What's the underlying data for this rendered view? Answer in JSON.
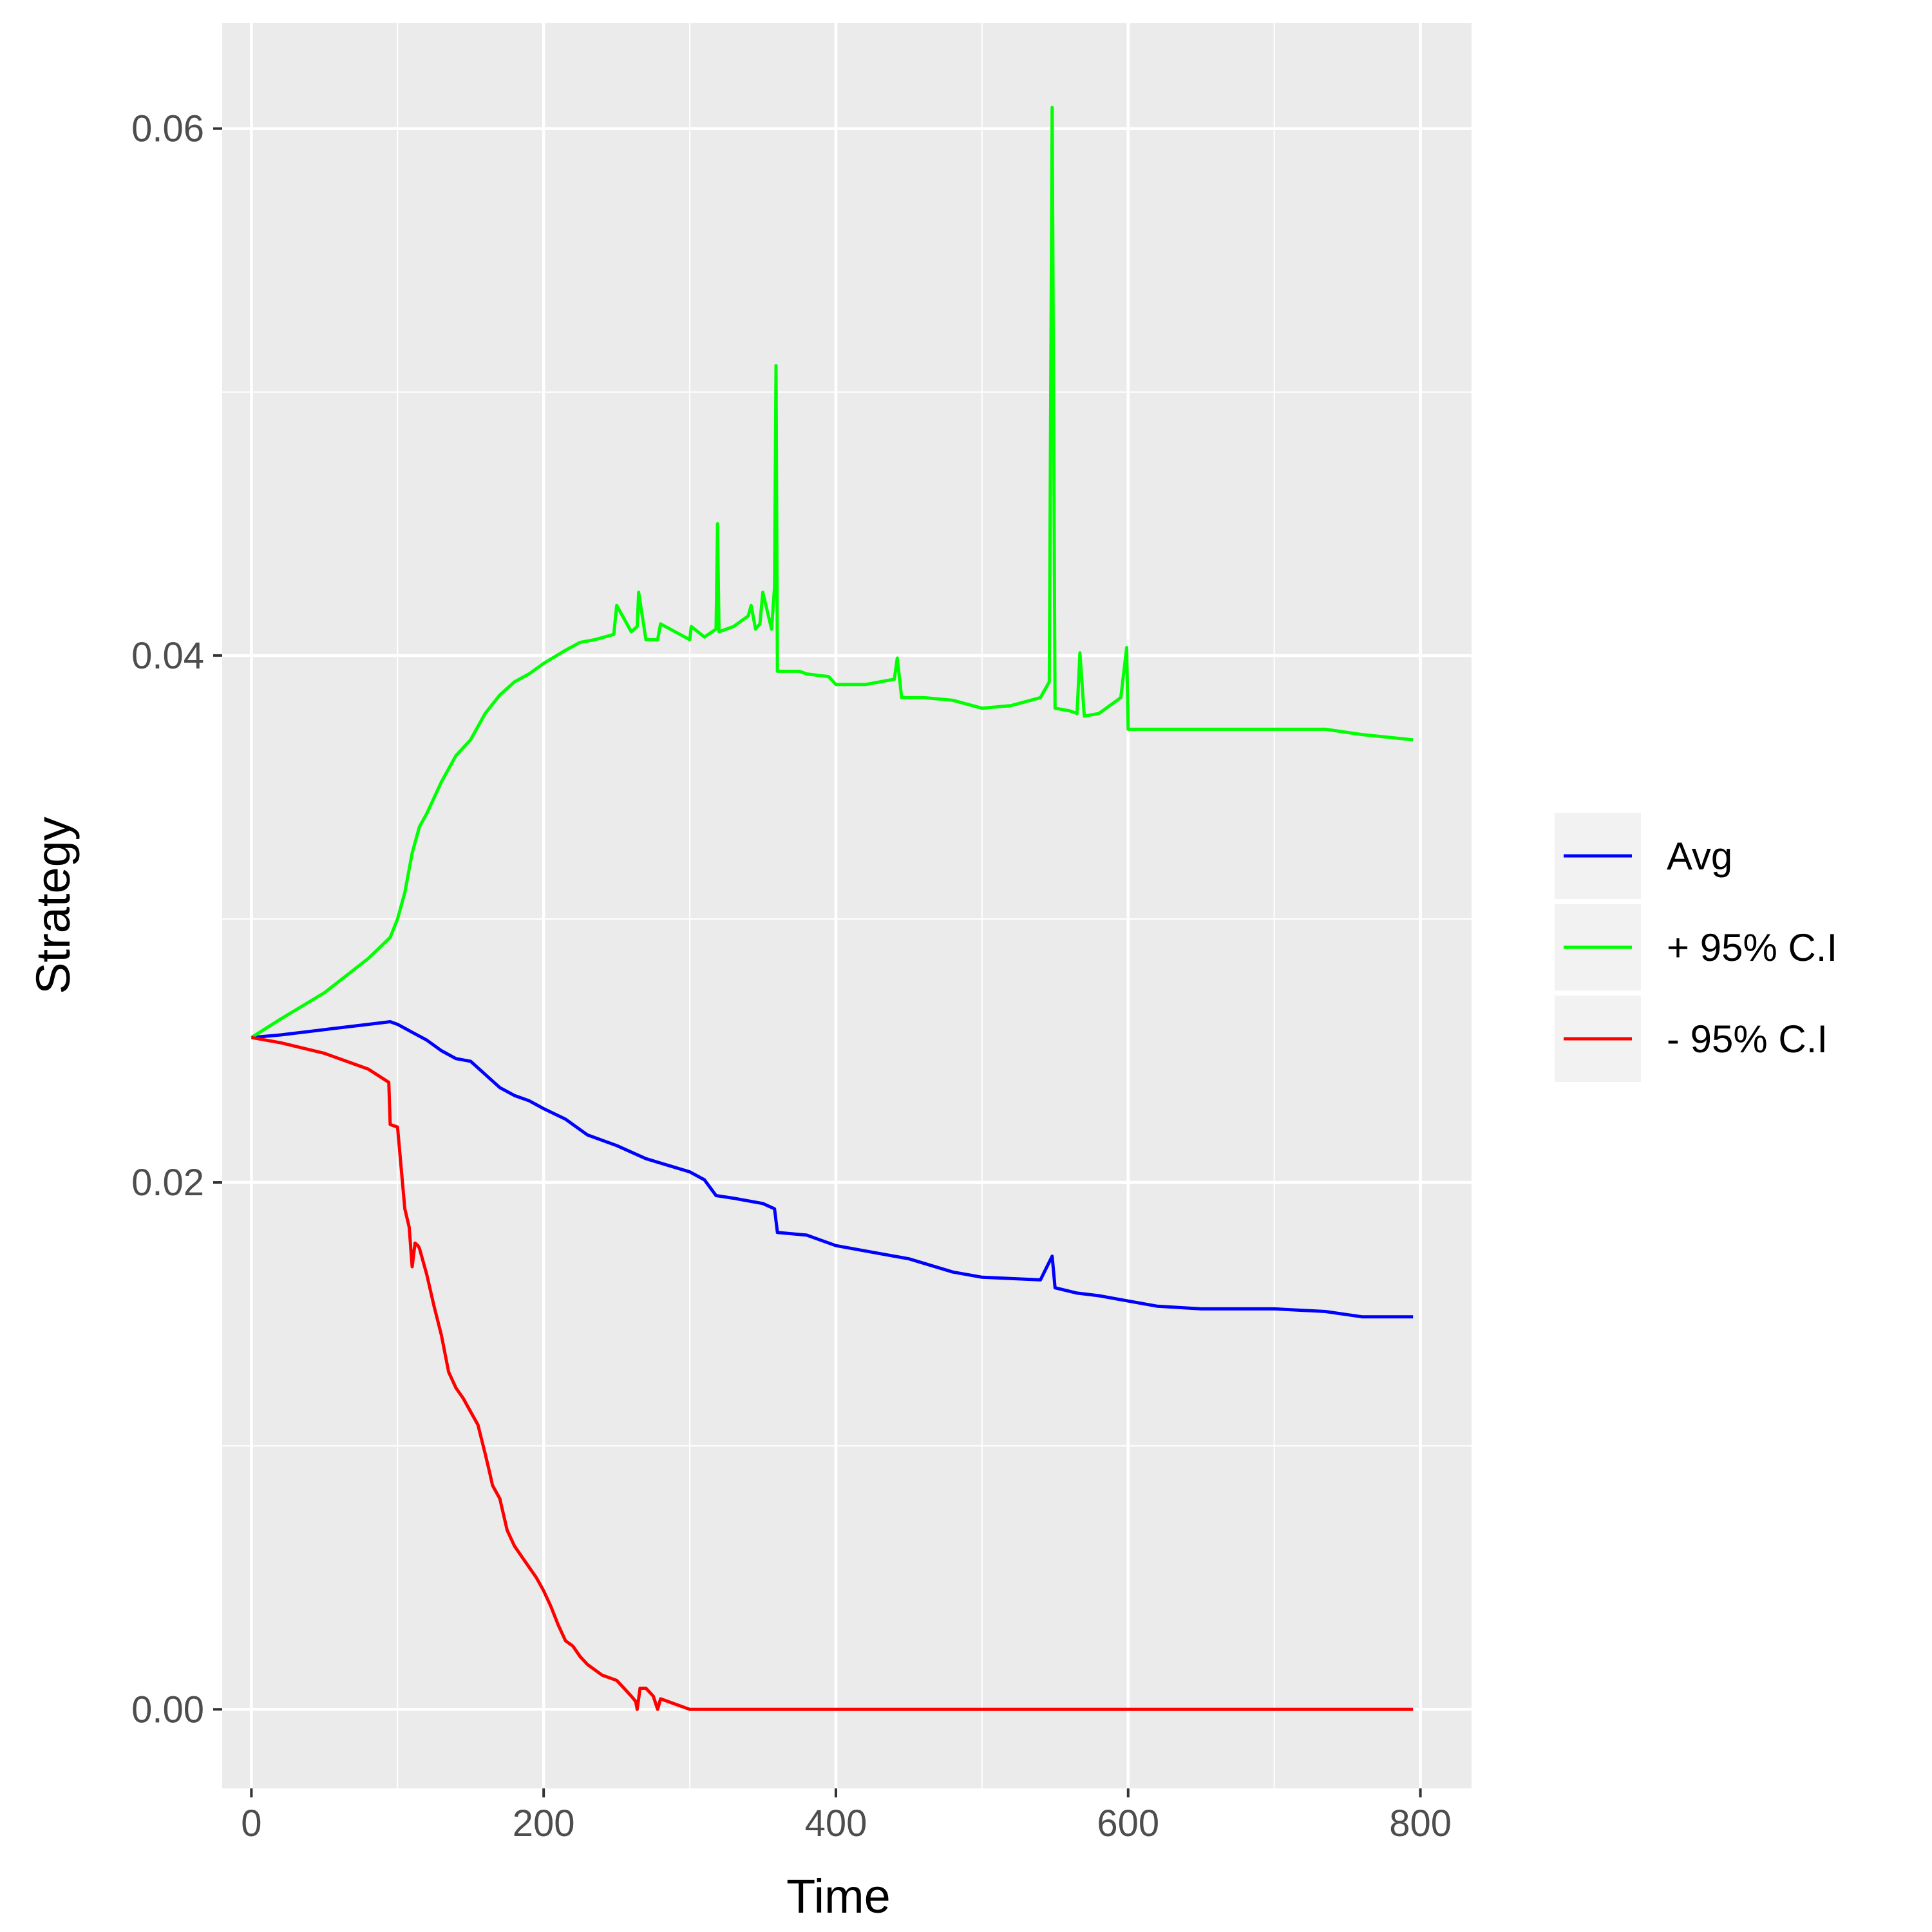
{
  "chart_data": {
    "type": "line",
    "xlabel": "Time",
    "ylabel": "Strategy",
    "xlim": [
      -20,
      835
    ],
    "ylim": [
      -0.003,
      0.064
    ],
    "x_ticks": [
      0,
      200,
      400,
      600,
      800
    ],
    "x_tick_labels": [
      "0",
      "200",
      "400",
      "600",
      "800"
    ],
    "y_ticks": [
      0.0,
      0.02,
      0.04,
      0.06
    ],
    "y_tick_labels": [
      "0.00",
      "0.02",
      "0.04",
      "0.06"
    ],
    "grid": true,
    "legend_position": "right",
    "series": [
      {
        "name": "Avg",
        "color": "#0000FF",
        "x": [
          0,
          20,
          50,
          80,
          95,
          100,
          110,
          120,
          130,
          140,
          150,
          160,
          170,
          180,
          190,
          200,
          215,
          230,
          250,
          270,
          300,
          310,
          318,
          330,
          350,
          358,
          360,
          380,
          400,
          420,
          450,
          480,
          500,
          540,
          548,
          550,
          565,
          580,
          600,
          620,
          650,
          700,
          735,
          760,
          795
        ],
        "y": [
          0.0255,
          0.0256,
          0.0258,
          0.026,
          0.0261,
          0.026,
          0.0257,
          0.0254,
          0.025,
          0.0247,
          0.0246,
          0.0241,
          0.0236,
          0.0233,
          0.0231,
          0.0228,
          0.0224,
          0.0218,
          0.0214,
          0.0209,
          0.0204,
          0.0201,
          0.0195,
          0.0194,
          0.0192,
          0.019,
          0.0181,
          0.018,
          0.0176,
          0.0174,
          0.0171,
          0.0166,
          0.0164,
          0.0163,
          0.0172,
          0.016,
          0.0158,
          0.0157,
          0.0155,
          0.0153,
          0.0152,
          0.0152,
          0.0151,
          0.0149,
          0.0149
        ]
      },
      {
        "name": "+ 95% C.I",
        "color": "#00FF00",
        "x": [
          0,
          20,
          50,
          80,
          95,
          100,
          105,
          110,
          115,
          120,
          130,
          140,
          150,
          160,
          170,
          180,
          190,
          200,
          215,
          225,
          235,
          248,
          250,
          260,
          264,
          265,
          270,
          278,
          280,
          300,
          301,
          310,
          318,
          319,
          320,
          330,
          340,
          342,
          345,
          348,
          350,
          356,
          358,
          359,
          360,
          375,
          380,
          395,
          400,
          420,
          440,
          442,
          445,
          460,
          480,
          500,
          520,
          540,
          546,
          548,
          550,
          560,
          565,
          567,
          570,
          580,
          595,
          599,
          600,
          620,
          700,
          735,
          760,
          795
        ],
        "y": [
          0.0255,
          0.0262,
          0.0272,
          0.0285,
          0.0293,
          0.03,
          0.031,
          0.0325,
          0.0335,
          0.034,
          0.0352,
          0.0362,
          0.0368,
          0.0378,
          0.0385,
          0.039,
          0.0393,
          0.0397,
          0.0402,
          0.0405,
          0.0406,
          0.0408,
          0.0419,
          0.0409,
          0.0411,
          0.0424,
          0.0406,
          0.0406,
          0.0412,
          0.0406,
          0.0411,
          0.0407,
          0.041,
          0.045,
          0.0409,
          0.0411,
          0.0415,
          0.0419,
          0.041,
          0.0412,
          0.0424,
          0.041,
          0.0426,
          0.051,
          0.0394,
          0.0394,
          0.0393,
          0.0392,
          0.0389,
          0.0389,
          0.0391,
          0.0399,
          0.0384,
          0.0384,
          0.0383,
          0.038,
          0.0381,
          0.0384,
          0.039,
          0.0608,
          0.038,
          0.0379,
          0.0378,
          0.0401,
          0.0377,
          0.0378,
          0.0384,
          0.0403,
          0.0372,
          0.0372,
          0.0372,
          0.0372,
          0.037,
          0.0368
        ]
      },
      {
        "name": "- 95% C.I",
        "color": "#FF0000",
        "x": [
          0,
          20,
          50,
          80,
          94,
          95,
          100,
          105,
          108,
          110,
          112,
          114,
          115,
          120,
          125,
          130,
          135,
          140,
          145,
          150,
          155,
          160,
          163,
          165,
          170,
          175,
          180,
          185,
          190,
          195,
          200,
          205,
          210,
          215,
          220,
          225,
          230,
          240,
          250,
          255,
          260,
          263,
          264,
          266,
          270,
          275,
          278,
          280,
          290,
          300,
          350,
          400,
          500,
          600,
          700,
          795
        ],
        "y": [
          0.0255,
          0.0253,
          0.0249,
          0.0243,
          0.0238,
          0.0222,
          0.0221,
          0.019,
          0.0183,
          0.0168,
          0.0177,
          0.0176,
          0.0175,
          0.0165,
          0.0153,
          0.0142,
          0.0128,
          0.0122,
          0.0118,
          0.0113,
          0.0108,
          0.0097,
          0.009,
          0.0085,
          0.008,
          0.0068,
          0.0062,
          0.0058,
          0.0054,
          0.005,
          0.0045,
          0.0039,
          0.0032,
          0.0026,
          0.0024,
          0.002,
          0.0017,
          0.0013,
          0.0011,
          0.0008,
          0.0005,
          0.0003,
          0.0,
          0.0008,
          0.0008,
          0.0005,
          0.0,
          0.0004,
          0.0002,
          0.0,
          0.0,
          0.0,
          0.0,
          0.0,
          0.0,
          0.0
        ]
      }
    ]
  },
  "colors": {
    "panel_background": "#EBEBEB",
    "grid_line": "#FFFFFF",
    "legend_key_background": "#F2F2F2"
  }
}
